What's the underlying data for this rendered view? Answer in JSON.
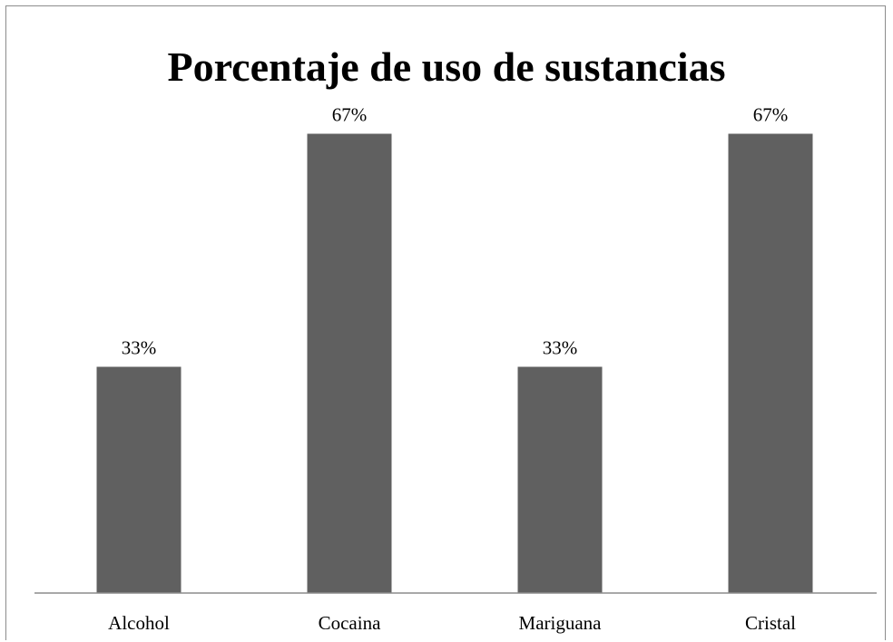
{
  "chart_data": {
    "type": "bar",
    "title": "Porcentaje de uso de sustancias",
    "categories": [
      "Alcohol",
      "Cocaina",
      "Mariguana",
      "Cristal"
    ],
    "values": [
      33,
      67,
      33,
      67
    ],
    "data_labels": [
      "33%",
      "67%",
      "33%",
      "67%"
    ],
    "unit": "%",
    "bar_color": "#606060",
    "ylim": [
      0,
      100
    ],
    "grid": false,
    "legend": "none"
  }
}
